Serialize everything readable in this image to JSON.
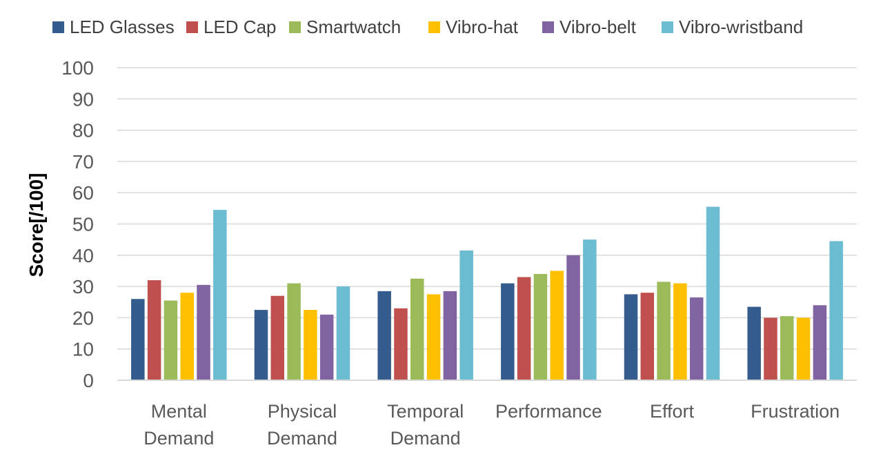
{
  "chart_data": {
    "type": "bar",
    "title": "",
    "xlabel": "",
    "ylabel": "Score[/100]",
    "ylim": [
      0,
      100
    ],
    "yticks": [
      0,
      10,
      20,
      30,
      40,
      50,
      60,
      70,
      80,
      90,
      100
    ],
    "grid": true,
    "legend_position": "top",
    "categories": [
      [
        "Mental",
        "Demand"
      ],
      [
        "Physical",
        "Demand"
      ],
      [
        "Temporal",
        "Demand"
      ],
      [
        "Performance"
      ],
      [
        "Effort"
      ],
      [
        "Frustration"
      ]
    ],
    "series": [
      {
        "name": "LED Glasses",
        "color": "#355C8F",
        "values": [
          26,
          22.5,
          28.5,
          31,
          27.5,
          23.5
        ]
      },
      {
        "name": "LED Cap",
        "color": "#C0504D",
        "values": [
          32,
          27,
          23,
          33,
          28,
          20
        ]
      },
      {
        "name": "Smartwatch",
        "color": "#9BBB59",
        "values": [
          25.5,
          31,
          32.5,
          34,
          31.5,
          20.5
        ]
      },
      {
        "name": "Vibro-hat",
        "color": "#FFC000",
        "values": [
          28,
          22.5,
          27.5,
          35,
          31,
          20
        ]
      },
      {
        "name": "Vibro-belt",
        "color": "#8064A2",
        "values": [
          30.5,
          21,
          28.5,
          40,
          26.5,
          24
        ]
      },
      {
        "name": "Vibro-wristband",
        "color": "#6BBCD0",
        "values": [
          54.5,
          30,
          41.5,
          45,
          55.5,
          44.5
        ]
      }
    ]
  }
}
